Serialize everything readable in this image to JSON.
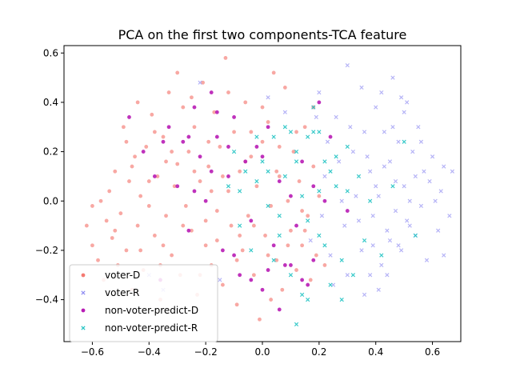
{
  "chart_data": {
    "type": "scatter",
    "title": "PCA on the first two components-TCA feature",
    "xlabel": "",
    "ylabel": "",
    "xlim": [
      -0.7,
      0.7
    ],
    "ylim": [
      -0.57,
      0.63
    ],
    "xticks": [
      -0.6,
      -0.4,
      -0.2,
      0.0,
      0.2,
      0.4,
      0.6
    ],
    "yticks": [
      -0.4,
      -0.2,
      0.0,
      0.2,
      0.4,
      0.6
    ],
    "xtick_labels": [
      "−0.6",
      "−0.4",
      "−0.2",
      "0.0",
      "0.2",
      "0.4",
      "0.6"
    ],
    "ytick_labels": [
      "−0.4",
      "−0.2",
      "0.0",
      "0.2",
      "0.4",
      "0.6"
    ],
    "grid": false,
    "legend_position": "lower-left",
    "series": [
      {
        "name": "voter-D",
        "marker": "dot",
        "color": "#f47a72",
        "opacity": 0.65,
        "points": [
          [
            -0.62,
            -0.1
          ],
          [
            -0.6,
            -0.02
          ],
          [
            -0.58,
            -0.24
          ],
          [
            -0.56,
            -0.32
          ],
          [
            -0.55,
            -0.08
          ],
          [
            -0.54,
            0.04
          ],
          [
            -0.53,
            -0.15
          ],
          [
            -0.52,
            0.12
          ],
          [
            -0.5,
            -0.05
          ],
          [
            -0.49,
            0.3
          ],
          [
            -0.48,
            -0.2
          ],
          [
            -0.47,
            0.08
          ],
          [
            -0.46,
            -0.36
          ],
          [
            -0.45,
            0.18
          ],
          [
            -0.44,
            -0.1
          ],
          [
            -0.43,
            0.02
          ],
          [
            -0.42,
            -0.28
          ],
          [
            -0.41,
            0.22
          ],
          [
            -0.4,
            -0.02
          ],
          [
            -0.39,
            0.35
          ],
          [
            -0.38,
            -0.14
          ],
          [
            -0.37,
            0.1
          ],
          [
            -0.36,
            -0.4
          ],
          [
            -0.35,
            0.26
          ],
          [
            -0.34,
            -0.06
          ],
          [
            -0.33,
            0.44
          ],
          [
            -0.32,
            -0.22
          ],
          [
            -0.31,
            0.06
          ],
          [
            -0.3,
            0.15
          ],
          [
            -0.29,
            -0.3
          ],
          [
            -0.28,
            0.38
          ],
          [
            -0.27,
            -0.02
          ],
          [
            -0.26,
            0.2
          ],
          [
            -0.25,
            -0.12
          ],
          [
            -0.24,
            0.3
          ],
          [
            -0.23,
            -0.38
          ],
          [
            -0.22,
            0.08
          ],
          [
            -0.21,
            0.48
          ],
          [
            -0.2,
            -0.18
          ],
          [
            -0.19,
            0.14
          ],
          [
            -0.18,
            -0.26
          ],
          [
            -0.17,
            0.36
          ],
          [
            -0.16,
            -0.04
          ],
          [
            -0.15,
            0.22
          ],
          [
            -0.14,
            -0.34
          ],
          [
            -0.13,
            0.58
          ],
          [
            -0.12,
            0.04
          ],
          [
            -0.11,
            -0.1
          ],
          [
            -0.1,
            0.28
          ],
          [
            -0.09,
            -0.42
          ],
          [
            -0.08,
            0.12
          ],
          [
            -0.07,
            -0.2
          ],
          [
            -0.06,
            0.4
          ],
          [
            -0.05,
            -0.06
          ],
          [
            -0.04,
            0.18
          ],
          [
            -0.03,
            -0.3
          ],
          [
            -0.02,
            0.06
          ],
          [
            -0.01,
            -0.48
          ],
          [
            0.0,
            0.24
          ],
          [
            0.01,
            -0.14
          ],
          [
            0.02,
            0.32
          ],
          [
            0.03,
            -0.02
          ],
          [
            0.04,
            0.52
          ],
          [
            0.05,
            -0.24
          ],
          [
            0.06,
            0.1
          ],
          [
            0.07,
            -0.36
          ],
          [
            0.08,
            0.46
          ],
          [
            0.09,
            0.0
          ],
          [
            0.1,
            -0.12
          ],
          [
            0.11,
            0.2
          ],
          [
            0.12,
            -0.28
          ],
          [
            0.13,
            0.08
          ],
          [
            0.14,
            -0.18
          ],
          [
            0.15,
            0.3
          ],
          [
            0.16,
            -0.06
          ],
          [
            0.17,
            -0.32
          ],
          [
            0.18,
            0.14
          ],
          [
            0.19,
            -0.22
          ],
          [
            0.2,
            0.02
          ],
          [
            0.22,
            -0.26
          ],
          [
            -0.57,
            0.0
          ],
          [
            -0.51,
            -0.26
          ],
          [
            -0.46,
            0.14
          ],
          [
            -0.43,
            -0.2
          ],
          [
            -0.38,
            0.28
          ],
          [
            -0.35,
            -0.18
          ],
          [
            -0.32,
            0.2
          ],
          [
            -0.28,
            -0.1
          ],
          [
            -0.25,
            0.42
          ],
          [
            -0.22,
            -0.3
          ],
          [
            -0.19,
            0.24
          ],
          [
            -0.16,
            -0.16
          ],
          [
            -0.12,
            0.44
          ],
          [
            -0.09,
            -0.24
          ],
          [
            -0.06,
            0.16
          ],
          [
            -0.03,
            -0.1
          ],
          [
            0.0,
            0.38
          ],
          [
            0.03,
            -0.4
          ],
          [
            0.06,
            0.22
          ],
          [
            0.09,
            -0.18
          ],
          [
            0.12,
            0.28
          ],
          [
            0.15,
            -0.12
          ],
          [
            0.18,
            0.38
          ],
          [
            -0.44,
            0.4
          ],
          [
            -0.3,
            0.52
          ],
          [
            -0.18,
            0.04
          ],
          [
            -0.08,
            -0.14
          ],
          [
            0.02,
            -0.22
          ],
          [
            -0.52,
            -0.12
          ],
          [
            -0.4,
            0.08
          ],
          [
            -0.36,
            -0.26
          ],
          [
            -0.24,
            0.12
          ],
          [
            -0.14,
            0.1
          ],
          [
            -0.04,
            0.28
          ],
          [
            0.05,
            0.12
          ],
          [
            0.14,
            -0.04
          ],
          [
            -0.6,
            -0.18
          ],
          [
            -0.48,
            0.24
          ],
          [
            -0.34,
            0.16
          ],
          [
            -0.2,
            -0.08
          ]
        ]
      },
      {
        "name": "voter-R",
        "marker": "x",
        "color": "#8f8cf2",
        "opacity": 0.65,
        "points": [
          [
            0.2,
            0.44
          ],
          [
            0.22,
            0.1
          ],
          [
            0.24,
            -0.22
          ],
          [
            0.26,
            0.34
          ],
          [
            0.28,
            0.0
          ],
          [
            0.3,
            0.55
          ],
          [
            0.3,
            -0.3
          ],
          [
            0.32,
            0.2
          ],
          [
            0.34,
            -0.08
          ],
          [
            0.35,
            0.46
          ],
          [
            0.36,
            -0.38
          ],
          [
            0.38,
            0.12
          ],
          [
            0.39,
            -0.18
          ],
          [
            0.4,
            0.38
          ],
          [
            0.41,
            0.02
          ],
          [
            0.42,
            -0.26
          ],
          [
            0.43,
            0.28
          ],
          [
            0.44,
            -0.12
          ],
          [
            0.45,
            0.16
          ],
          [
            0.46,
            0.5
          ],
          [
            0.47,
            -0.04
          ],
          [
            0.48,
            0.24
          ],
          [
            0.49,
            -0.2
          ],
          [
            0.5,
            0.06
          ],
          [
            0.51,
            0.4
          ],
          [
            0.52,
            -0.1
          ],
          [
            0.53,
            0.2
          ],
          [
            0.54,
            -0.14
          ],
          [
            0.55,
            0.3
          ],
          [
            0.56,
            -0.02
          ],
          [
            0.57,
            0.12
          ],
          [
            0.58,
            -0.24
          ],
          [
            0.59,
            0.08
          ],
          [
            0.6,
            0.18
          ],
          [
            0.62,
            -0.12
          ],
          [
            0.63,
            0.04
          ],
          [
            0.64,
            0.14
          ],
          [
            0.66,
            -0.06
          ],
          [
            0.67,
            0.12
          ],
          [
            0.36,
            0.28
          ],
          [
            0.38,
            -0.3
          ],
          [
            0.4,
            0.06
          ],
          [
            0.42,
            0.44
          ],
          [
            0.44,
            -0.3
          ],
          [
            0.46,
            0.3
          ],
          [
            0.48,
            -0.18
          ],
          [
            0.5,
            0.36
          ],
          [
            0.52,
            0.0
          ],
          [
            0.54,
            0.1
          ],
          [
            0.56,
            0.24
          ],
          [
            0.33,
            0.02
          ],
          [
            0.35,
            -0.2
          ],
          [
            0.37,
            0.18
          ],
          [
            0.39,
            -0.06
          ],
          [
            0.41,
            -0.36
          ],
          [
            0.43,
            0.14
          ],
          [
            0.45,
            -0.16
          ],
          [
            0.47,
            0.08
          ],
          [
            0.49,
            0.42
          ],
          [
            0.51,
            -0.08
          ],
          [
            0.27,
            0.16
          ],
          [
            0.29,
            -0.1
          ],
          [
            0.31,
            0.3
          ],
          [
            0.25,
            -0.34
          ],
          [
            0.23,
            0.24
          ],
          [
            0.21,
            -0.06
          ],
          [
            0.19,
            0.34
          ],
          [
            0.17,
            -0.16
          ],
          [
            0.61,
            0.0
          ],
          [
            0.64,
            -0.22
          ],
          [
            -0.35,
            -0.36
          ],
          [
            -0.22,
            0.48
          ],
          [
            -0.15,
            -0.32
          ],
          [
            0.02,
            0.42
          ],
          [
            0.08,
            0.36
          ],
          [
            -0.4,
            -0.3
          ]
        ]
      },
      {
        "name": "non-voter-predict-D",
        "marker": "dot",
        "color": "#b81cb5",
        "opacity": 0.9,
        "points": [
          [
            -0.47,
            0.34
          ],
          [
            -0.42,
            0.2
          ],
          [
            -0.38,
            0.1
          ],
          [
            -0.36,
            -0.32
          ],
          [
            -0.33,
            0.3
          ],
          [
            -0.3,
            0.06
          ],
          [
            -0.28,
            0.24
          ],
          [
            -0.26,
            -0.12
          ],
          [
            -0.24,
            0.38
          ],
          [
            -0.22,
            0.18
          ],
          [
            -0.2,
            0.0
          ],
          [
            -0.18,
            0.44
          ],
          [
            -0.16,
            0.26
          ],
          [
            -0.14,
            -0.2
          ],
          [
            -0.12,
            0.1
          ],
          [
            -0.1,
            0.34
          ],
          [
            -0.08,
            -0.3
          ],
          [
            -0.06,
            0.16
          ],
          [
            -0.04,
            -0.08
          ],
          [
            -0.02,
            0.22
          ],
          [
            0.0,
            -0.36
          ],
          [
            0.02,
            0.3
          ],
          [
            0.04,
            -0.18
          ],
          [
            0.06,
            0.08
          ],
          [
            0.08,
            -0.26
          ],
          [
            0.1,
            0.02
          ],
          [
            0.12,
            -0.1
          ],
          [
            0.14,
            0.16
          ],
          [
            0.16,
            -0.34
          ],
          [
            0.18,
            -0.24
          ],
          [
            0.2,
            0.4
          ],
          [
            0.22,
            0.0
          ],
          [
            0.24,
            0.26
          ],
          [
            0.3,
            -0.04
          ],
          [
            -0.35,
            0.24
          ],
          [
            -0.26,
            0.26
          ],
          [
            -0.18,
            0.12
          ],
          [
            -0.1,
            -0.22
          ],
          [
            0.0,
            0.18
          ],
          [
            -0.04,
            -0.32
          ],
          [
            0.02,
            -0.28
          ],
          [
            0.1,
            -0.26
          ],
          [
            0.18,
            0.06
          ],
          [
            -0.16,
            0.36
          ],
          [
            -0.24,
            0.04
          ],
          [
            0.06,
            -0.44
          ],
          [
            -0.12,
            0.22
          ],
          [
            0.14,
            -0.32
          ]
        ]
      },
      {
        "name": "non-voter-predict-R",
        "marker": "x",
        "color": "#23c4c4",
        "opacity": 0.9,
        "points": [
          [
            -0.12,
            0.06
          ],
          [
            -0.1,
            0.2
          ],
          [
            -0.08,
            -0.1
          ],
          [
            -0.06,
            0.12
          ],
          [
            -0.04,
            -0.2
          ],
          [
            -0.02,
            0.08
          ],
          [
            0.0,
            0.16
          ],
          [
            0.02,
            -0.02
          ],
          [
            0.04,
            0.26
          ],
          [
            0.06,
            -0.14
          ],
          [
            0.08,
            0.1
          ],
          [
            0.1,
            -0.3
          ],
          [
            0.12,
            0.2
          ],
          [
            0.14,
            0.02
          ],
          [
            0.16,
            -0.4
          ],
          [
            0.18,
            0.28
          ],
          [
            0.2,
            -0.14
          ],
          [
            0.22,
            0.16
          ],
          [
            0.24,
            -0.34
          ],
          [
            0.26,
            0.06
          ],
          [
            0.28,
            -0.24
          ],
          [
            0.3,
            0.22
          ],
          [
            0.32,
            -0.3
          ],
          [
            0.34,
            0.1
          ],
          [
            0.36,
            -0.16
          ],
          [
            0.38,
            0.0
          ],
          [
            0.42,
            -0.22
          ],
          [
            0.46,
            0.06
          ],
          [
            0.5,
            0.24
          ],
          [
            0.54,
            -0.14
          ],
          [
            0.08,
            0.3
          ],
          [
            0.12,
            -0.5
          ],
          [
            0.16,
            0.26
          ],
          [
            0.2,
            0.04
          ],
          [
            0.24,
            0.12
          ],
          [
            0.28,
            -0.4
          ],
          [
            0.14,
            -0.38
          ],
          [
            0.06,
            -0.06
          ],
          [
            -0.02,
            0.26
          ],
          [
            0.1,
            0.28
          ],
          [
            0.18,
            0.38
          ],
          [
            0.22,
            -0.18
          ],
          [
            0.26,
            0.18
          ],
          [
            0.3,
            0.04
          ],
          [
            0.04,
            -0.24
          ],
          [
            0.12,
            0.16
          ],
          [
            -0.08,
            0.04
          ],
          [
            0.02,
            0.12
          ],
          [
            0.2,
            0.28
          ],
          [
            0.16,
            -0.08
          ]
        ]
      }
    ]
  }
}
